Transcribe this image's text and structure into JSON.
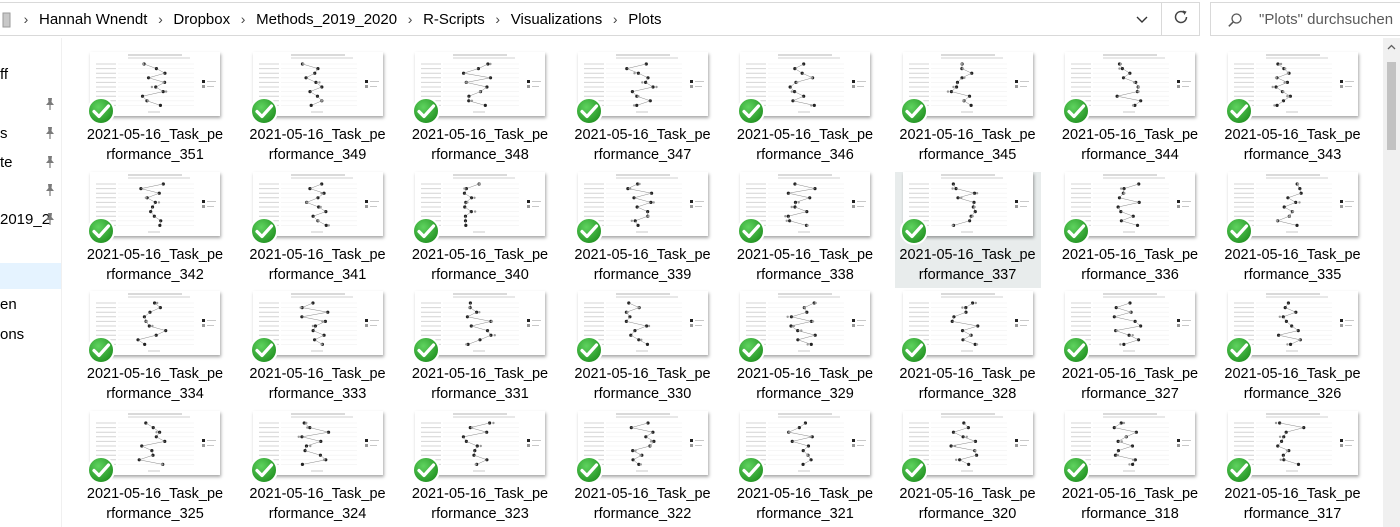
{
  "address_bar": {
    "icon": "folder-icon",
    "breadcrumbs": [
      "Hannah Wnendt",
      "Dropbox",
      "Methods_2019_2020",
      "R-Scripts",
      "Visualizations",
      "Plots"
    ]
  },
  "search": {
    "placeholder": "\"Plots\" durchsuchen",
    "icon": "search-icon"
  },
  "nav": {
    "items": [
      {
        "label": "ff",
        "pinned": false
      },
      {
        "label": "",
        "pinned": true
      },
      {
        "label": "s",
        "pinned": true
      },
      {
        "label": "te",
        "pinned": true
      },
      {
        "label": "",
        "pinned": true
      },
      {
        "label": "2019_2",
        "pinned": true
      },
      {
        "label": "",
        "pinned": false
      },
      {
        "label": "en",
        "pinned": false
      },
      {
        "label": "ons",
        "pinned": false
      }
    ]
  },
  "files": [
    {
      "line1": "2021-05-16_Task_pe",
      "line2": "rformance_351"
    },
    {
      "line1": "2021-05-16_Task_pe",
      "line2": "rformance_349"
    },
    {
      "line1": "2021-05-16_Task_pe",
      "line2": "rformance_348"
    },
    {
      "line1": "2021-05-16_Task_pe",
      "line2": "rformance_347"
    },
    {
      "line1": "2021-05-16_Task_pe",
      "line2": "rformance_346"
    },
    {
      "line1": "2021-05-16_Task_pe",
      "line2": "rformance_345"
    },
    {
      "line1": "2021-05-16_Task_pe",
      "line2": "rformance_344"
    },
    {
      "line1": "2021-05-16_Task_pe",
      "line2": "rformance_343"
    },
    {
      "line1": "2021-05-16_Task_pe",
      "line2": "rformance_342"
    },
    {
      "line1": "2021-05-16_Task_pe",
      "line2": "rformance_341"
    },
    {
      "line1": "2021-05-16_Task_pe",
      "line2": "rformance_340"
    },
    {
      "line1": "2021-05-16_Task_pe",
      "line2": "rformance_339"
    },
    {
      "line1": "2021-05-16_Task_pe",
      "line2": "rformance_338"
    },
    {
      "line1": "2021-05-16_Task_pe",
      "line2": "rformance_337",
      "selected": true
    },
    {
      "line1": "2021-05-16_Task_pe",
      "line2": "rformance_336"
    },
    {
      "line1": "2021-05-16_Task_pe",
      "line2": "rformance_335"
    },
    {
      "line1": "2021-05-16_Task_pe",
      "line2": "rformance_334"
    },
    {
      "line1": "2021-05-16_Task_pe",
      "line2": "rformance_333"
    },
    {
      "line1": "2021-05-16_Task_pe",
      "line2": "rformance_331"
    },
    {
      "line1": "2021-05-16_Task_pe",
      "line2": "rformance_330"
    },
    {
      "line1": "2021-05-16_Task_pe",
      "line2": "rformance_329"
    },
    {
      "line1": "2021-05-16_Task_pe",
      "line2": "rformance_328"
    },
    {
      "line1": "2021-05-16_Task_pe",
      "line2": "rformance_327"
    },
    {
      "line1": "2021-05-16_Task_pe",
      "line2": "rformance_326"
    },
    {
      "line1": "2021-05-16_Task_pe",
      "line2": "rformance_325"
    },
    {
      "line1": "2021-05-16_Task_pe",
      "line2": "rformance_324"
    },
    {
      "line1": "2021-05-16_Task_pe",
      "line2": "rformance_323"
    },
    {
      "line1": "2021-05-16_Task_pe",
      "line2": "rformance_322"
    },
    {
      "line1": "2021-05-16_Task_pe",
      "line2": "rformance_321"
    },
    {
      "line1": "2021-05-16_Task_pe",
      "line2": "rformance_320"
    },
    {
      "line1": "2021-05-16_Task_pe",
      "line2": "rformance_318"
    },
    {
      "line1": "2021-05-16_Task_pe",
      "line2": "rformance_317"
    }
  ],
  "colors": {
    "sync_check": "#2e9e2e",
    "selected_tile": "#e8ecec",
    "border": "#d9d9d9"
  },
  "icons": {
    "status": "green-check-icon",
    "nav_pin": "pin-icon",
    "refresh": "refresh-icon",
    "dropdown": "chevron-down-icon"
  }
}
